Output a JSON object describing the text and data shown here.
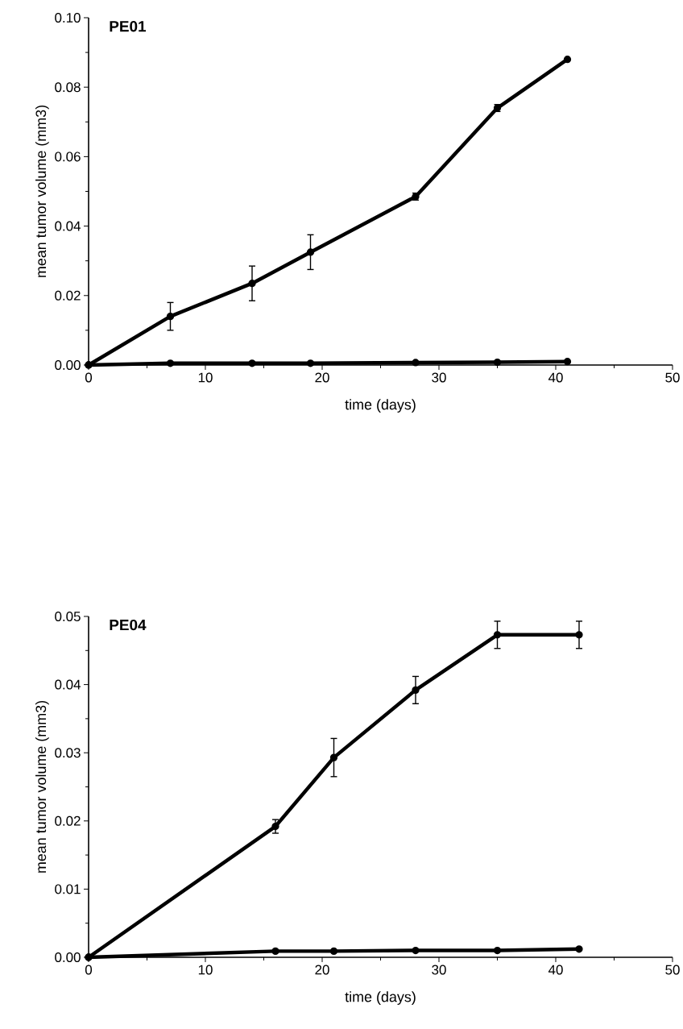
{
  "chart_data": [
    {
      "type": "line",
      "title": "PE01",
      "xlabel": "time (days)",
      "ylabel": "mean tumor volume (mm3)",
      "xlim": [
        0,
        50
      ],
      "xticks": [
        0,
        10,
        20,
        30,
        40,
        50
      ],
      "ylim": [
        0,
        0.1
      ],
      "yticks": [
        {
          "value": 0,
          "label": "0.00"
        },
        {
          "value": 0.02,
          "label": "0.02"
        },
        {
          "value": 0.04,
          "label": "0.04"
        },
        {
          "value": 0.06,
          "label": "0.06"
        },
        {
          "value": 0.08,
          "label": "0.08"
        },
        {
          "value": 0.1,
          "label": "0.10"
        }
      ],
      "grid": false,
      "marker": "circle",
      "line_style": "solid",
      "x": [
        0,
        7,
        14,
        19,
        28,
        35,
        41
      ],
      "series": [
        {
          "color": "#000000",
          "values": [
            0,
            0.014,
            0.0235,
            0.0325,
            0.0485,
            0.074,
            0.088
          ],
          "errors": [
            null,
            0.004,
            0.005,
            0.005,
            0.001,
            0.001,
            null
          ]
        },
        {
          "color": "#000000",
          "values": [
            0,
            0.0005,
            0.0005,
            0.0005,
            0.0007,
            0.0008,
            0.001
          ]
        }
      ]
    },
    {
      "type": "line",
      "title": "PE04",
      "xlabel": "time (days)",
      "ylabel": "mean tumor volume (mm3)",
      "xlim": [
        0,
        50
      ],
      "xticks": [
        0,
        10,
        20,
        30,
        40,
        50
      ],
      "ylim": [
        0,
        0.05
      ],
      "yticks": [
        {
          "value": 0,
          "label": "0.00"
        },
        {
          "value": 0.01,
          "label": "0.01"
        },
        {
          "value": 0.02,
          "label": "0.02"
        },
        {
          "value": 0.03,
          "label": "0.03"
        },
        {
          "value": 0.04,
          "label": "0.04"
        },
        {
          "value": 0.05,
          "label": "0.05"
        }
      ],
      "grid": false,
      "marker": "circle",
      "line_style": "solid",
      "x": [
        0,
        16,
        21,
        28,
        35,
        42
      ],
      "series": [
        {
          "color": "#000000",
          "values": [
            0,
            0.0192,
            0.0293,
            0.0392,
            0.0473,
            0.0473
          ],
          "errors": [
            null,
            0.001,
            0.0028,
            0.002,
            0.002,
            0.002
          ]
        },
        {
          "color": "#000000",
          "values": [
            0,
            0.0009,
            0.0009,
            0.001,
            0.001,
            0.0012
          ]
        }
      ]
    }
  ]
}
